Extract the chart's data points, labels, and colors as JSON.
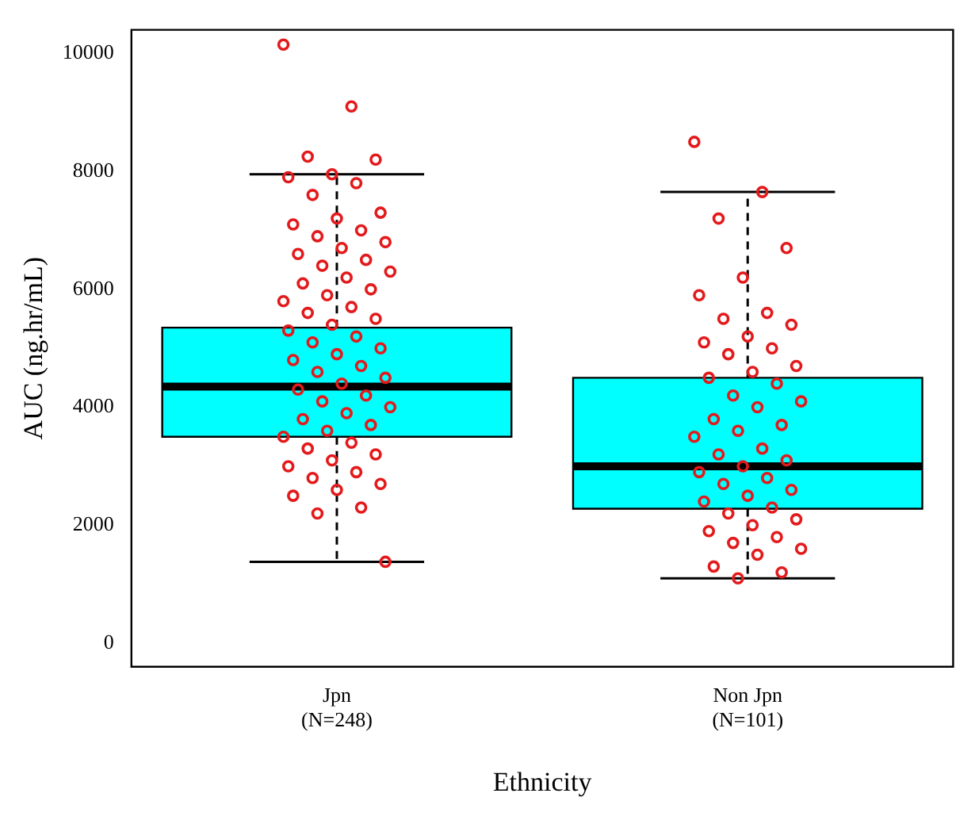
{
  "chart_data": {
    "type": "box",
    "xlabel": "Ethnicity",
    "ylabel": "AUC (ng.hr/mL)",
    "categories": [
      "Jpn\n(N=248)",
      "Non Jpn\n(N=101)"
    ],
    "ylim": [
      -400,
      10400
    ],
    "yticks": [
      0,
      2000,
      4000,
      6000,
      8000,
      10000
    ],
    "grid": false,
    "legend": false,
    "series": [
      {
        "color": "#00ffff",
        "boxes": [
          {
            "low": 1380,
            "q1": 3500,
            "median": 4350,
            "q3": 5350,
            "high": 7950
          },
          {
            "low": 1100,
            "q1": 2280,
            "median": 3000,
            "q3": 4500,
            "high": 7650
          }
        ]
      },
      {
        "type": "scatter",
        "color": "#e31a1c",
        "marker": "circle",
        "x": [
          "Jpn\n(N=248)",
          "Jpn\n(N=248)",
          "Jpn\n(N=248)",
          "Jpn\n(N=248)",
          "Jpn\n(N=248)",
          "Jpn\n(N=248)",
          "Jpn\n(N=248)",
          "Jpn\n(N=248)",
          "Jpn\n(N=248)",
          "Jpn\n(N=248)",
          "Jpn\n(N=248)",
          "Jpn\n(N=248)",
          "Jpn\n(N=248)",
          "Jpn\n(N=248)",
          "Jpn\n(N=248)",
          "Jpn\n(N=248)",
          "Jpn\n(N=248)",
          "Jpn\n(N=248)",
          "Jpn\n(N=248)",
          "Jpn\n(N=248)",
          "Jpn\n(N=248)",
          "Jpn\n(N=248)",
          "Jpn\n(N=248)",
          "Jpn\n(N=248)",
          "Jpn\n(N=248)",
          "Jpn\n(N=248)",
          "Jpn\n(N=248)",
          "Jpn\n(N=248)",
          "Jpn\n(N=248)",
          "Jpn\n(N=248)",
          "Jpn\n(N=248)",
          "Jpn\n(N=248)",
          "Jpn\n(N=248)",
          "Jpn\n(N=248)",
          "Jpn\n(N=248)",
          "Jpn\n(N=248)",
          "Jpn\n(N=248)",
          "Jpn\n(N=248)",
          "Jpn\n(N=248)",
          "Jpn\n(N=248)",
          "Jpn\n(N=248)",
          "Jpn\n(N=248)",
          "Jpn\n(N=248)",
          "Jpn\n(N=248)",
          "Jpn\n(N=248)",
          "Jpn\n(N=248)",
          "Jpn\n(N=248)",
          "Jpn\n(N=248)",
          "Jpn\n(N=248)",
          "Jpn\n(N=248)",
          "Jpn\n(N=248)",
          "Jpn\n(N=248)",
          "Jpn\n(N=248)",
          "Jpn\n(N=248)",
          "Jpn\n(N=248)",
          "Jpn\n(N=248)",
          "Jpn\n(N=248)",
          "Jpn\n(N=248)",
          "Jpn\n(N=248)",
          "Jpn\n(N=248)"
        ],
        "values": [
          10150,
          9100,
          8250,
          8200,
          7950,
          7900,
          7800,
          7600,
          7300,
          7200,
          7100,
          7000,
          6900,
          6800,
          6700,
          6600,
          6500,
          6400,
          6300,
          6200,
          6100,
          6000,
          5900,
          5800,
          5700,
          5600,
          5500,
          5400,
          5300,
          5200,
          5100,
          5000,
          4900,
          4800,
          4700,
          4600,
          4500,
          4400,
          4300,
          4200,
          4100,
          4000,
          3900,
          3800,
          3700,
          3600,
          3500,
          3400,
          3300,
          3200,
          3100,
          3000,
          2900,
          2800,
          2700,
          2600,
          2500,
          2300,
          2200,
          1380
        ]
      },
      {
        "type": "scatter",
        "color": "#e31a1c",
        "marker": "circle",
        "x": [
          "Non Jpn\n(N=101)",
          "Non Jpn\n(N=101)",
          "Non Jpn\n(N=101)",
          "Non Jpn\n(N=101)",
          "Non Jpn\n(N=101)",
          "Non Jpn\n(N=101)",
          "Non Jpn\n(N=101)",
          "Non Jpn\n(N=101)",
          "Non Jpn\n(N=101)",
          "Non Jpn\n(N=101)",
          "Non Jpn\n(N=101)",
          "Non Jpn\n(N=101)",
          "Non Jpn\n(N=101)",
          "Non Jpn\n(N=101)",
          "Non Jpn\n(N=101)",
          "Non Jpn\n(N=101)",
          "Non Jpn\n(N=101)",
          "Non Jpn\n(N=101)",
          "Non Jpn\n(N=101)",
          "Non Jpn\n(N=101)",
          "Non Jpn\n(N=101)",
          "Non Jpn\n(N=101)",
          "Non Jpn\n(N=101)",
          "Non Jpn\n(N=101)",
          "Non Jpn\n(N=101)",
          "Non Jpn\n(N=101)",
          "Non Jpn\n(N=101)",
          "Non Jpn\n(N=101)",
          "Non Jpn\n(N=101)",
          "Non Jpn\n(N=101)",
          "Non Jpn\n(N=101)",
          "Non Jpn\n(N=101)",
          "Non Jpn\n(N=101)",
          "Non Jpn\n(N=101)",
          "Non Jpn\n(N=101)",
          "Non Jpn\n(N=101)",
          "Non Jpn\n(N=101)",
          "Non Jpn\n(N=101)",
          "Non Jpn\n(N=101)",
          "Non Jpn\n(N=101)",
          "Non Jpn\n(N=101)",
          "Non Jpn\n(N=101)",
          "Non Jpn\n(N=101)",
          "Non Jpn\n(N=101)",
          "Non Jpn\n(N=101)",
          "Non Jpn\n(N=101)"
        ],
        "values": [
          8500,
          7650,
          7200,
          6700,
          6200,
          5900,
          5600,
          5500,
          5400,
          5200,
          5100,
          5000,
          4900,
          4700,
          4600,
          4500,
          4400,
          4200,
          4100,
          4000,
          3800,
          3700,
          3600,
          3500,
          3300,
          3200,
          3100,
          3000,
          2900,
          2800,
          2700,
          2600,
          2500,
          2400,
          2300,
          2200,
          2100,
          2000,
          1900,
          1800,
          1700,
          1600,
          1500,
          1300,
          1200,
          1100
        ]
      }
    ]
  }
}
